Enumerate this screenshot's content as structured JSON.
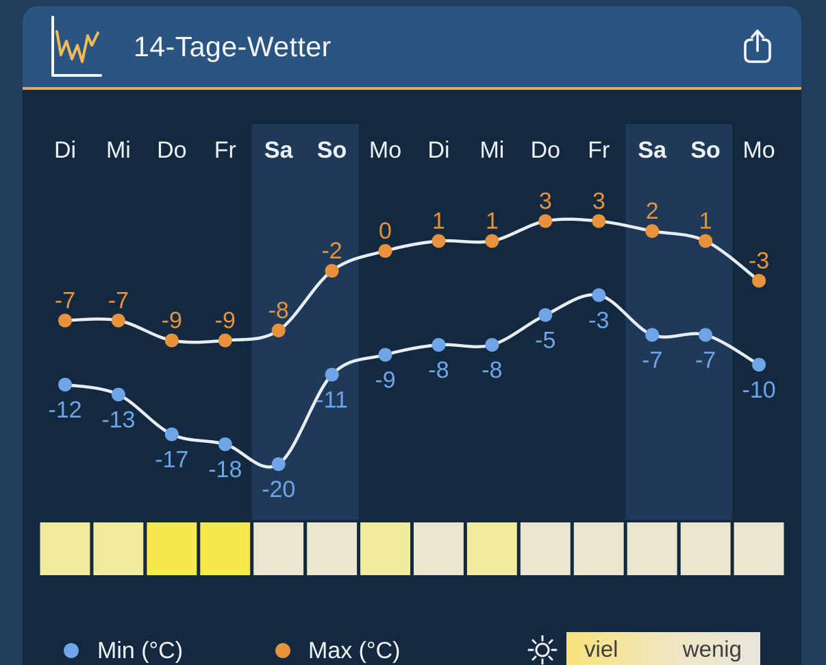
{
  "header": {
    "title": "14-Tage-Wetter",
    "chart_icon": "line-chart-icon",
    "share_icon": "share-icon"
  },
  "chart_data": {
    "type": "line",
    "title": "14-Tage-Wetter",
    "categories": [
      "Di",
      "Mi",
      "Do",
      "Fr",
      "Sa",
      "So",
      "Mo",
      "Di",
      "Mi",
      "Do",
      "Fr",
      "Sa",
      "So",
      "Mo"
    ],
    "weekend_indices": [
      4,
      5,
      11,
      12
    ],
    "series": [
      {
        "name": "Max (°C)",
        "color": "#e8923c",
        "values": [
          -7,
          -7,
          -9,
          -9,
          -8,
          -2,
          0,
          1,
          1,
          3,
          3,
          2,
          1,
          -3
        ]
      },
      {
        "name": "Min (°C)",
        "color": "#6da5e8",
        "values": [
          -12,
          -13,
          -17,
          -18,
          -20,
          -11,
          -9,
          -8,
          -8,
          -5,
          -3,
          -7,
          -7,
          -10
        ]
      }
    ],
    "line_color": "#e9edf4",
    "value_labels_shown": true,
    "legend_position": "bottom",
    "sunshine_row": {
      "levels": [
        "medium",
        "medium",
        "high",
        "high",
        "low",
        "low",
        "medium",
        "low",
        "medium",
        "low",
        "low",
        "low",
        "low",
        "low"
      ],
      "level_colors": {
        "high": "#f6e94c",
        "medium": "#f1eb9e",
        "low": "#ebe6cf"
      }
    }
  },
  "legend": {
    "min": {
      "label": "Min (°C)",
      "color": "#6da5e8"
    },
    "max": {
      "label": "Max (°C)",
      "color": "#e8923c"
    },
    "sun": {
      "icon": "sun-icon",
      "high_label": "viel",
      "low_label": "wenig"
    }
  },
  "colors": {
    "page_bg": "#203d5c",
    "header_bg": "#2b5480",
    "accent_line": "#dfae4a",
    "body_bg": "#13293f",
    "weekend_band": "#1e3a58",
    "day_label": "#eef2f6"
  }
}
